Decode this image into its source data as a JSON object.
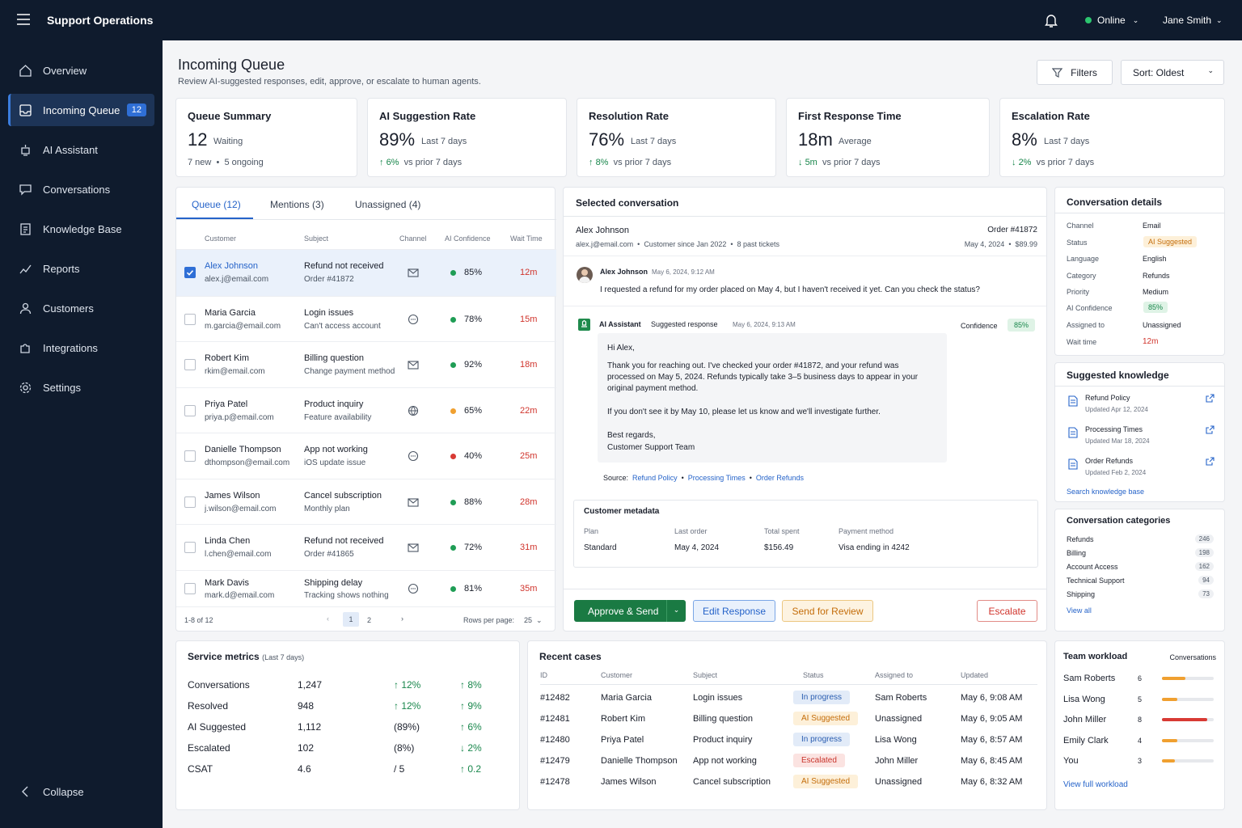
{
  "app": {
    "title": "Support Operations",
    "status": "Online",
    "user": "Jane Smith"
  },
  "nav": {
    "items": [
      {
        "label": "Overview",
        "icon": "home-icon"
      },
      {
        "label": "Incoming Queue",
        "icon": "inbox-icon",
        "badge": "12"
      },
      {
        "label": "AI Assistant",
        "icon": "ai-icon"
      },
      {
        "label": "Conversations",
        "icon": "chat-icon"
      },
      {
        "label": "Knowledge Base",
        "icon": "book-icon"
      },
      {
        "label": "Reports",
        "icon": "chart-icon"
      },
      {
        "label": "Customers",
        "icon": "user-icon"
      },
      {
        "label": "Integrations",
        "icon": "puzzle-icon"
      },
      {
        "label": "Settings",
        "icon": "gear-icon"
      }
    ],
    "collapse": "Collapse"
  },
  "page": {
    "title": "Incoming Queue",
    "subtitle": "Review AI-suggested responses, edit, approve, or escalate to human agents.",
    "filters": "Filters",
    "sort": "Sort: Oldest"
  },
  "stats": [
    {
      "title": "Queue Summary",
      "value": "12",
      "unit": "Waiting",
      "foot_a": "7 new",
      "foot_b": "5 ongoing"
    },
    {
      "title": "AI Suggestion Rate",
      "value": "89%",
      "unit": "Last 7 days",
      "delta": "6%",
      "delta_text": "vs prior 7 days"
    },
    {
      "title": "Resolution Rate",
      "value": "76%",
      "unit": "Last 7 days",
      "delta": "8%",
      "delta_text": "vs prior 7 days"
    },
    {
      "title": "First Response Time",
      "value": "18m",
      "unit": "Average",
      "delta": "5m",
      "delta_text": "vs prior 7 days"
    },
    {
      "title": "Escalation Rate",
      "value": "8%",
      "unit": "Last 7 days",
      "delta": "2%",
      "delta_text": "vs prior 7 days"
    }
  ],
  "queue": {
    "tabs": [
      "Queue (12)",
      "Mentions (3)",
      "Unassigned (4)"
    ],
    "headers": [
      "Customer",
      "Subject",
      "Channel",
      "AI Confidence",
      "Wait Time"
    ],
    "rows": [
      {
        "name": "Alex Johnson",
        "email": "alex.j@email.com",
        "subject": "Refund not received",
        "detail": "Order #41872",
        "channel": "email",
        "confidence": "85%",
        "level": "high",
        "wait": "12m"
      },
      {
        "name": "Maria Garcia",
        "email": "m.garcia@email.com",
        "subject": "Login issues",
        "detail": "Can't access account",
        "channel": "chat",
        "confidence": "78%",
        "level": "high",
        "wait": "15m"
      },
      {
        "name": "Robert Kim",
        "email": "rkim@email.com",
        "subject": "Billing question",
        "detail": "Change payment method",
        "channel": "email",
        "confidence": "92%",
        "level": "high",
        "wait": "18m"
      },
      {
        "name": "Priya Patel",
        "email": "priya.p@email.com",
        "subject": "Product inquiry",
        "detail": "Feature availability",
        "channel": "web",
        "confidence": "65%",
        "level": "medium",
        "wait": "22m"
      },
      {
        "name": "Danielle Thompson",
        "email": "dthompson@email.com",
        "subject": "App not working",
        "detail": "iOS update issue",
        "channel": "chat",
        "confidence": "40%",
        "level": "low",
        "wait": "25m"
      },
      {
        "name": "James Wilson",
        "email": "j.wilson@email.com",
        "subject": "Cancel subscription",
        "detail": "Monthly plan",
        "channel": "email",
        "confidence": "88%",
        "level": "high",
        "wait": "28m"
      },
      {
        "name": "Linda Chen",
        "email": "l.chen@email.com",
        "subject": "Refund not received",
        "detail": "Order #41865",
        "channel": "email",
        "confidence": "72%",
        "level": "high",
        "wait": "31m"
      },
      {
        "name": "Mark Davis",
        "email": "mark.d@email.com",
        "subject": "Shipping delay",
        "detail": "Tracking shows nothing",
        "channel": "chat",
        "confidence": "81%",
        "level": "high",
        "wait": "35m"
      }
    ],
    "pager": "1-8 of 12",
    "pages": [
      "1",
      "2"
    ],
    "rows_per_page_label": "Rows per page:",
    "rows_per_page": "25"
  },
  "convo": {
    "heading": "Selected conversation",
    "customer": "Alex Johnson",
    "email": "alex.j@email.com",
    "since": "Customer since Jan 2022",
    "tickets": "8 past tickets",
    "order": "Order #41872",
    "order_date": "May 4, 2024",
    "order_total": "$89.99",
    "msg_name": "Alex Johnson",
    "msg_time": "May 6, 2024, 9:12 AM",
    "msg_text": "I requested a refund for my order placed on May 4, but I haven't received it yet. Can you check the status?",
    "ai_name": "AI Assistant",
    "ai_label": "Suggested response",
    "ai_time": "May 6, 2024, 9:13 AM",
    "confidence_label": "Confidence",
    "confidence": "85%",
    "reply": [
      "Hi Alex,",
      "Thank you for reaching out. I've checked your order #41872, and your refund was",
      "processed on May 5, 2024. Refunds typically take 3–5 business days to appear in your",
      "original payment method.",
      "If you don't see it by May 10, please let us know and we'll investigate further.",
      "Best regards,",
      "Customer Support Team"
    ],
    "source_label": "Source:",
    "sources": [
      "Refund Policy",
      "Processing Times",
      "Order Refunds"
    ],
    "meta_title": "Customer metadata",
    "meta": [
      {
        "label": "Plan",
        "value": "Standard"
      },
      {
        "label": "Last order",
        "value": "May 4, 2024"
      },
      {
        "label": "Total spent",
        "value": "$156.49"
      },
      {
        "label": "Payment method",
        "value": "Visa ending in 4242"
      }
    ],
    "approve": "Approve & Send",
    "edit": "Edit Response",
    "review": "Send for Review",
    "escalate": "Escalate"
  },
  "details": {
    "title": "Conversation details",
    "rows": [
      {
        "label": "Channel",
        "value": "Email"
      },
      {
        "label": "Status",
        "value": "AI Suggested"
      },
      {
        "label": "Language",
        "value": "English"
      },
      {
        "label": "Category",
        "value": "Refunds"
      },
      {
        "label": "Priority",
        "value": "Medium"
      },
      {
        "label": "AI Confidence",
        "value": "85%"
      },
      {
        "label": "Assigned to",
        "value": "Unassigned"
      },
      {
        "label": "Wait time",
        "value": "12m"
      }
    ]
  },
  "knowledge": {
    "title": "Suggested knowledge",
    "items": [
      {
        "title": "Refund Policy",
        "updated": "Updated Apr 12, 2024"
      },
      {
        "title": "Processing Times",
        "updated": "Updated Mar 18, 2024"
      },
      {
        "title": "Order Refunds",
        "updated": "Updated Feb 2, 2024"
      }
    ],
    "link": "Search knowledge base"
  },
  "categories": {
    "title": "Conversation categories",
    "items": [
      {
        "label": "Refunds",
        "count": "246"
      },
      {
        "label": "Billing",
        "count": "198"
      },
      {
        "label": "Account Access",
        "count": "162"
      },
      {
        "label": "Technical Support",
        "count": "94"
      },
      {
        "label": "Shipping",
        "count": "73"
      }
    ],
    "link": "View all"
  },
  "metrics": {
    "title": "Service metrics",
    "period": "(Last 7 days)",
    "rows": [
      {
        "label": "Conversations",
        "value": "1,247",
        "change": "↑ 12%",
        "change2": "↑ 8%"
      },
      {
        "label": "Resolved",
        "value": "948",
        "change": "↑ 12%",
        "change2": "↑ 9%"
      },
      {
        "label": "AI Suggested",
        "value": "1,112",
        "change": "(89%)",
        "change2": "↑ 6%"
      },
      {
        "label": "Escalated",
        "value": "102",
        "change": "(8%)",
        "change2": "↓ 2%"
      },
      {
        "label": "CSAT",
        "value": "4.6",
        "change": "/ 5",
        "change2": "↑ 0.2"
      }
    ]
  },
  "recent": {
    "title": "Recent cases",
    "headers": [
      "ID",
      "Customer",
      "Subject",
      "Status",
      "Assigned to",
      "Updated"
    ],
    "rows": [
      {
        "id": "#12482",
        "customer": "Maria Garcia",
        "subject": "Login issues",
        "status": "In progress",
        "assigned": "Sam Roberts",
        "updated": "May 6, 9:08 AM"
      },
      {
        "id": "#12481",
        "customer": "Robert Kim",
        "subject": "Billing question",
        "status": "AI Suggested",
        "assigned": "Unassigned",
        "updated": "May 6, 9:05 AM"
      },
      {
        "id": "#12480",
        "customer": "Priya Patel",
        "subject": "Product inquiry",
        "status": "In progress",
        "assigned": "Lisa Wong",
        "updated": "May 6, 8:57 AM"
      },
      {
        "id": "#12479",
        "customer": "Danielle Thompson",
        "subject": "App not working",
        "status": "Escalated",
        "assigned": "John Miller",
        "updated": "May 6, 8:45 AM"
      },
      {
        "id": "#12478",
        "customer": "James Wilson",
        "subject": "Cancel subscription",
        "status": "AI Suggested",
        "assigned": "Unassigned",
        "updated": "May 6, 8:32 AM"
      }
    ]
  },
  "workload": {
    "title": "Team workload",
    "col": "Conversations",
    "rows": [
      {
        "name": "Sam Roberts",
        "count": "6",
        "fraction": 0.45,
        "color": "#f0a030"
      },
      {
        "name": "Lisa Wong",
        "count": "5",
        "fraction": 0.3,
        "color": "#f0a030"
      },
      {
        "name": "John Miller",
        "count": "8",
        "fraction": 0.88,
        "color": "#d83a34"
      },
      {
        "name": "Emily Clark",
        "count": "4",
        "fraction": 0.3,
        "color": "#f0a030"
      },
      {
        "name": "You",
        "count": "3",
        "fraction": 0.25,
        "color": "#f0a030"
      }
    ],
    "link": "View full workload"
  }
}
